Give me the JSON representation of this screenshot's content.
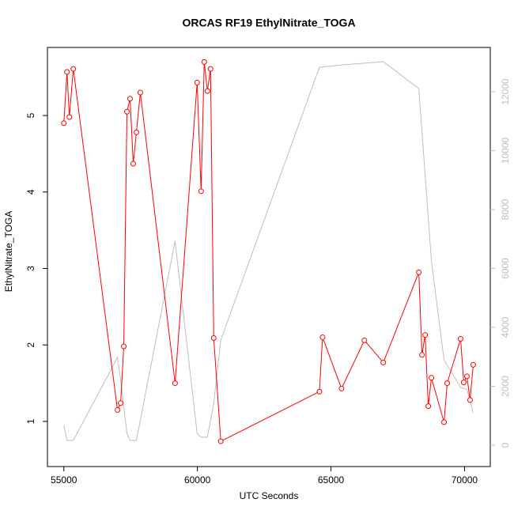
{
  "chart_data": {
    "type": "line",
    "title": "ORCAS RF19 EthylNitrate_TOGA",
    "x_label": "UTC Seconds",
    "y_label": "EthylNitrate_TOGA",
    "xlim": [
      54386,
      70964
    ],
    "xticks": [
      55000,
      60000,
      65000,
      70000
    ],
    "ylim": [
      0.41,
      5.89
    ],
    "yticks": [
      1,
      2,
      3,
      4,
      5
    ],
    "y2lim": [
      -725,
      13503
    ],
    "y2ticks": [
      0,
      2000,
      4000,
      6000,
      8000,
      10000,
      12000
    ],
    "series": [
      {
        "name": "EthylNitrate_TOGA",
        "color": "#ff0000",
        "markers": true,
        "x": [
          55000,
          55118,
          55207,
          55354,
          57008,
          57126,
          57244,
          57362,
          57480,
          57598,
          57716,
          57864,
          59164,
          59990,
          60138,
          60256,
          60374,
          60492,
          60611,
          60876,
          64568,
          64686,
          65395,
          66251,
          66960,
          68289,
          68407,
          68525,
          68643,
          68761,
          69233,
          69351,
          69853,
          69971,
          70089,
          70208,
          70326
        ],
        "values": [
          4.9,
          5.57,
          4.98,
          5.61,
          1.15,
          1.24,
          1.98,
          5.05,
          5.22,
          4.37,
          4.78,
          5.3,
          1.5,
          5.43,
          4.01,
          5.7,
          5.32,
          5.61,
          2.09,
          0.74,
          1.39,
          2.1,
          1.43,
          2.06,
          1.77,
          2.95,
          1.87,
          2.13,
          1.2,
          1.57,
          0.99,
          1.5,
          2.08,
          1.51,
          1.59,
          1.28,
          1.74
        ]
      },
      {
        "color": "#bebebe",
        "axis": "y2",
        "markers": false,
        "x": [
          55000,
          55118,
          55354,
          57008,
          57126,
          57362,
          57480,
          57716,
          59164,
          59990,
          60138,
          60374,
          60611,
          60876,
          64568,
          65395,
          66960,
          68289,
          68761,
          69233,
          69853,
          70089,
          70326
        ],
        "values": [
          670,
          160,
          160,
          2980,
          2230,
          400,
          160,
          160,
          6930,
          400,
          270,
          270,
          1420,
          3570,
          12830,
          12910,
          13020,
          12110,
          6250,
          2900,
          1960,
          1900,
          1100
        ]
      }
    ]
  }
}
